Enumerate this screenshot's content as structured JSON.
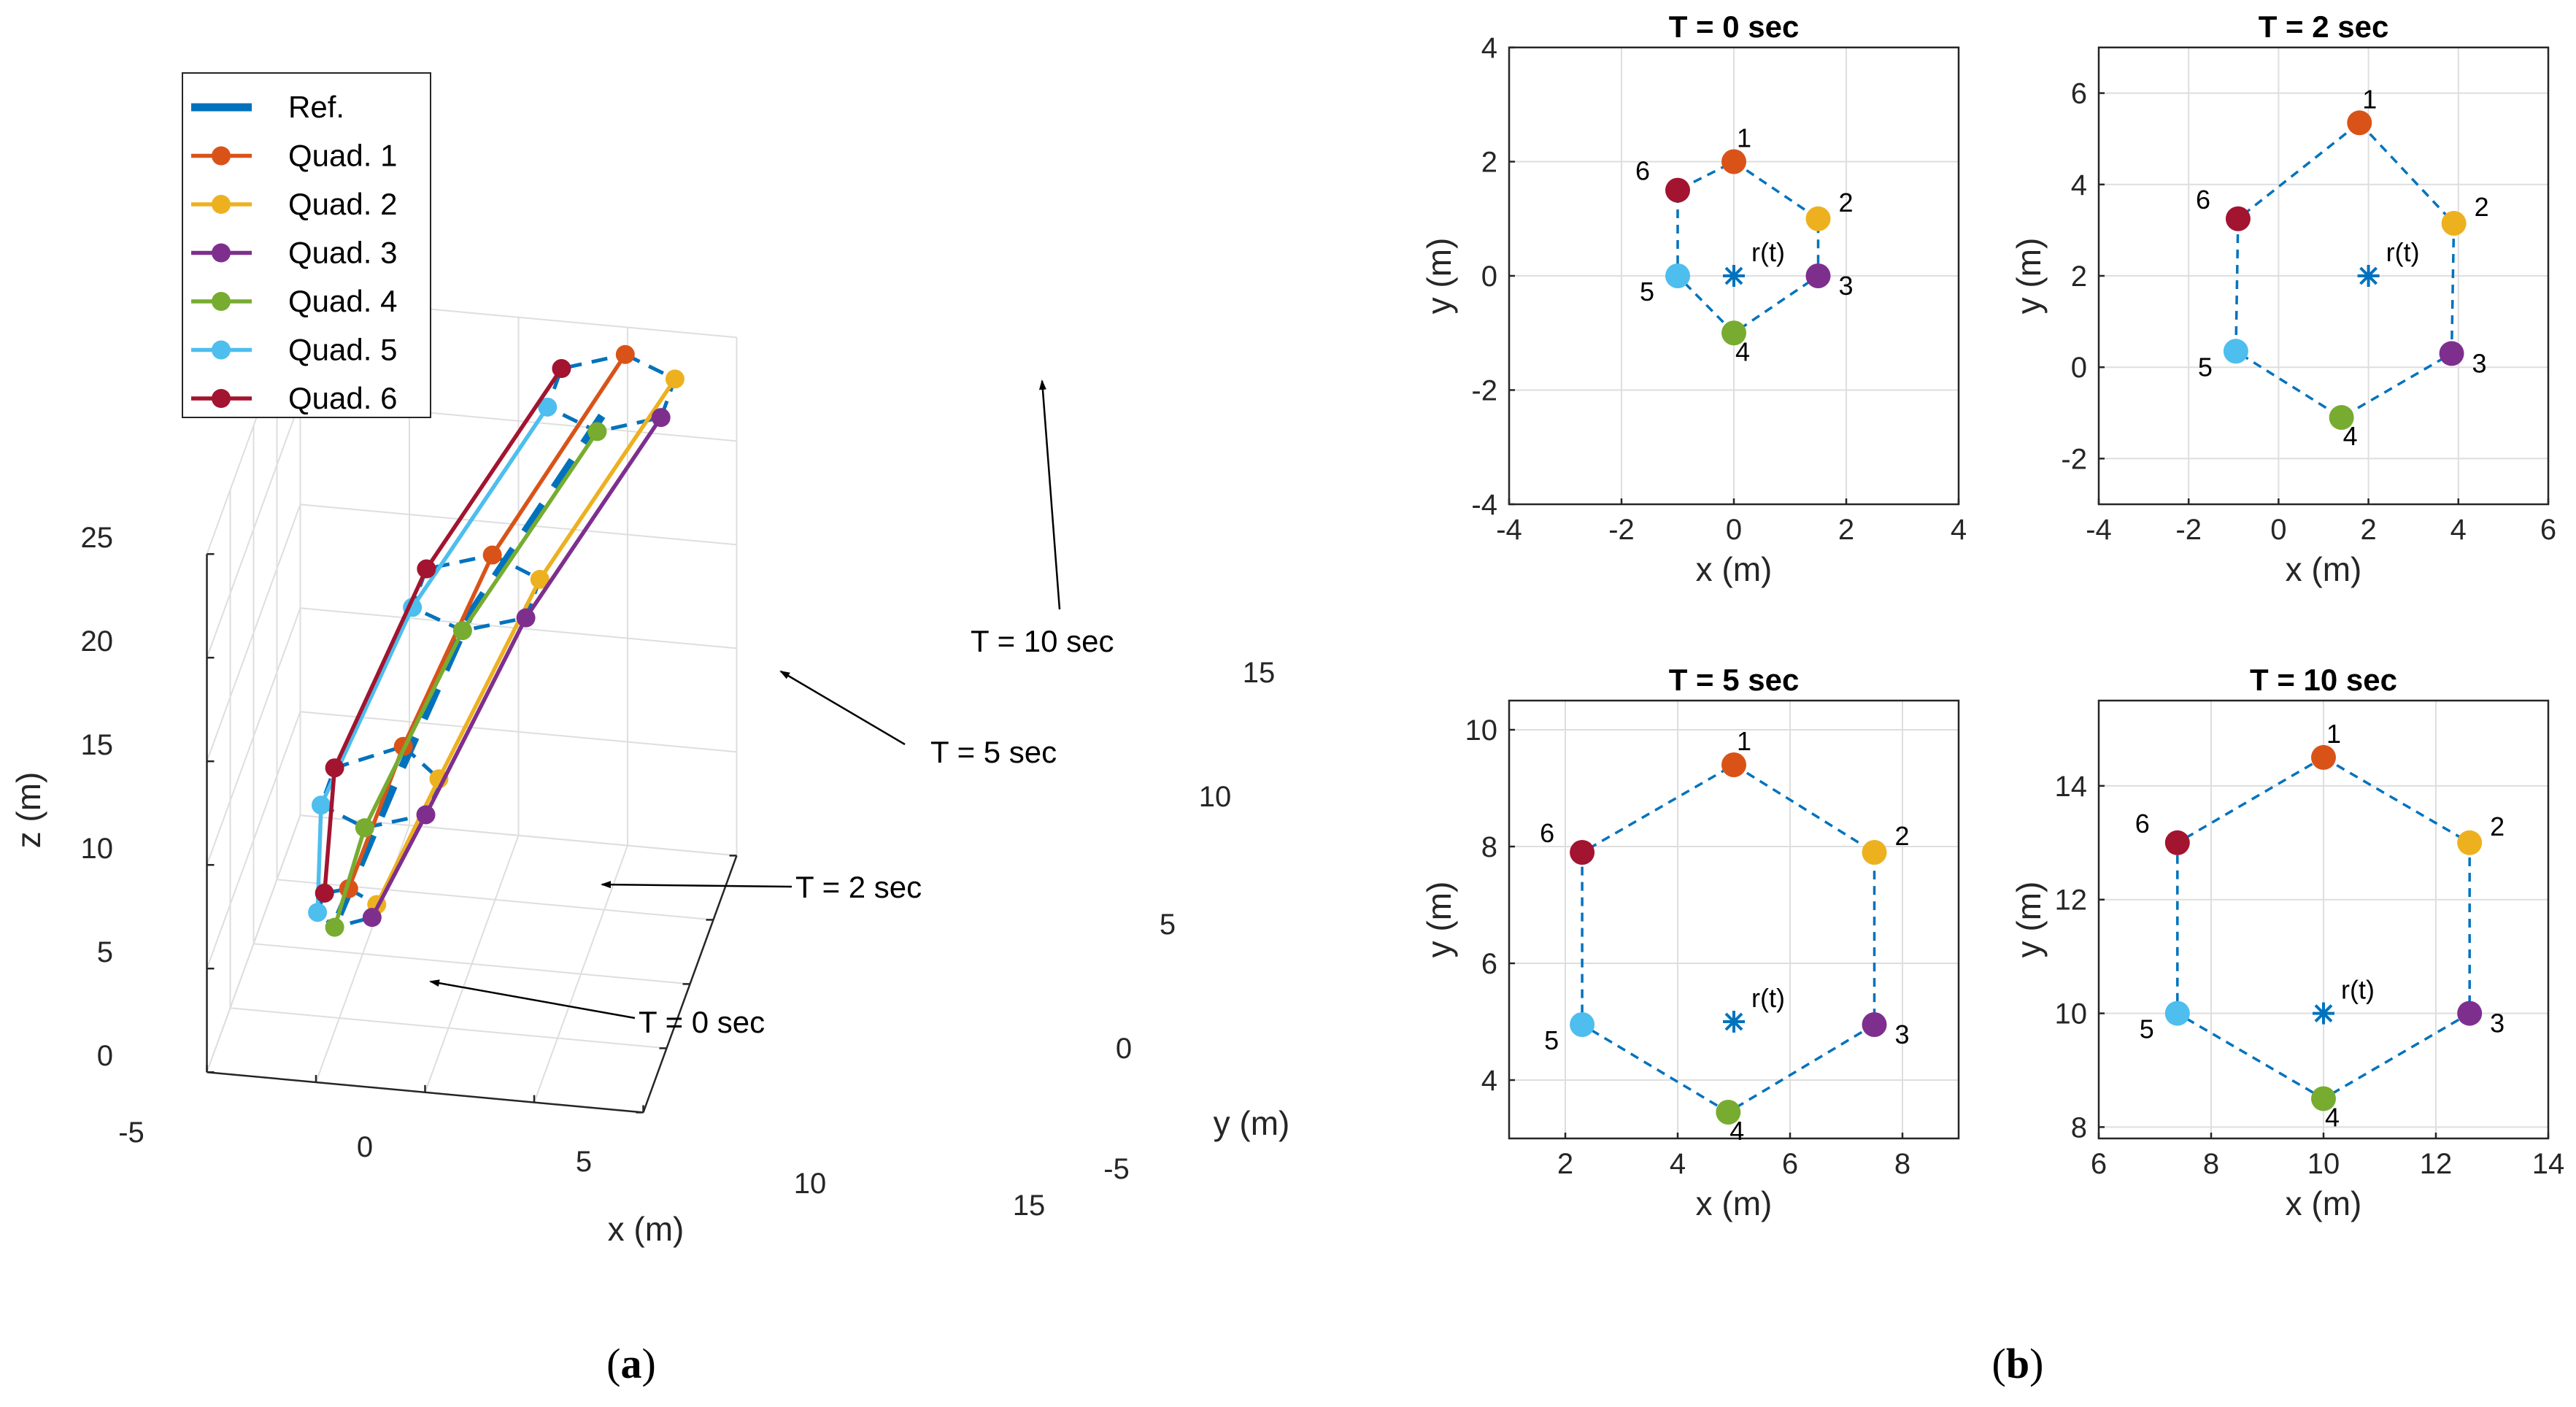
{
  "colors": {
    "ref": "#0072BD",
    "q1": "#D95319",
    "q2": "#EDB120",
    "q3": "#7E2F8E",
    "q4": "#77AC30",
    "q5": "#4DBEEE",
    "q6": "#A2142F"
  },
  "captions": {
    "a": "(a)",
    "a_letter": "a",
    "b": "(b)",
    "b_letter": "b"
  },
  "chart_data": [
    {
      "type": "line",
      "id": "3d-trajectories",
      "xlabel": "x (m)",
      "ylabel": "y (m)",
      "zlabel": "z (m)",
      "xlim": [
        -5,
        15
      ],
      "ylim": [
        -5,
        15
      ],
      "zlim": [
        0,
        25
      ],
      "x_ticks": [
        "-5",
        "0",
        "5",
        "10",
        "15"
      ],
      "y_ticks": [
        "-5",
        "0",
        "5",
        "10",
        "15"
      ],
      "z_ticks": [
        "0",
        "5",
        "10",
        "15",
        "20",
        "25"
      ],
      "legend": [
        "Ref.",
        "Quad. 1",
        "Quad. 2",
        "Quad. 3",
        "Quad. 4",
        "Quad. 5",
        "Quad. 6"
      ],
      "legend_location": "top-left",
      "annotations": [
        "T = 0 sec",
        "T = 2 sec",
        "T = 5 sec",
        "T = 10 sec"
      ],
      "snapshot_times": [
        0,
        2,
        5,
        10
      ],
      "series": [
        {
          "name": "Ref.",
          "points": [
            [
              0,
              0,
              5
            ],
            [
              2,
              2,
              10
            ],
            [
              5,
              5,
              17
            ],
            [
              10,
              10,
              24
            ]
          ]
        },
        {
          "name": "Quad. 1",
          "points": [
            [
              0,
              2,
              5
            ],
            [
              1.8,
              5.3,
              10
            ],
            [
              5,
              9.4,
              17
            ],
            [
              10,
              14.5,
              24
            ]
          ]
        },
        {
          "name": "Quad. 2",
          "points": [
            [
              1.5,
              1,
              5
            ],
            [
              3.9,
              3.1,
              10
            ],
            [
              7.5,
              7.9,
              17
            ],
            [
              12.6,
              13,
              24
            ]
          ]
        },
        {
          "name": "Quad. 3",
          "points": [
            [
              1.5,
              0,
              5
            ],
            [
              3.9,
              0.3,
              10
            ],
            [
              7.5,
              4.9,
              17
            ],
            [
              12.6,
              10,
              24
            ]
          ]
        },
        {
          "name": "Quad. 4",
          "points": [
            [
              0,
              -1,
              5
            ],
            [
              1.4,
              -1.1,
              10
            ],
            [
              4.9,
              3.5,
              17
            ],
            [
              10,
              8.5,
              24
            ]
          ]
        },
        {
          "name": "Quad. 5",
          "points": [
            [
              -1,
              0,
              5
            ],
            [
              -0.9,
              0.3,
              10
            ],
            [
              2.3,
              4.9,
              17
            ],
            [
              7.4,
              10,
              24
            ]
          ]
        },
        {
          "name": "Quad. 6",
          "points": [
            [
              -1,
              1.5,
              5
            ],
            [
              -0.9,
              3.2,
              10
            ],
            [
              2.3,
              7.9,
              17
            ],
            [
              7.4,
              13,
              24
            ]
          ]
        }
      ]
    },
    {
      "type": "scatter",
      "id": "T0",
      "title": "T = 0 sec",
      "xlabel": "x (m)",
      "ylabel": "y (m)",
      "xlim": [
        -4,
        4
      ],
      "ylim": [
        -4,
        4
      ],
      "x_ticks": [
        "-4",
        "-2",
        "0",
        "2",
        "4"
      ],
      "y_ticks": [
        "-4",
        "-2",
        "0",
        "2",
        "4"
      ],
      "center": {
        "label": "r(t)",
        "x": 0,
        "y": 0
      },
      "quads": [
        {
          "id": "1",
          "x": 0,
          "y": 2
        },
        {
          "id": "2",
          "x": 1.5,
          "y": 1
        },
        {
          "id": "3",
          "x": 1.5,
          "y": 0
        },
        {
          "id": "4",
          "x": 0,
          "y": -1
        },
        {
          "id": "5",
          "x": -1,
          "y": 0
        },
        {
          "id": "6",
          "x": -1,
          "y": 1.5
        }
      ]
    },
    {
      "type": "scatter",
      "id": "T2",
      "title": "T = 2 sec",
      "xlabel": "x (m)",
      "ylabel": "y (m)",
      "xlim": [
        -4,
        6
      ],
      "ylim": [
        -3,
        7
      ],
      "x_ticks": [
        "-4",
        "-2",
        "0",
        "2",
        "4",
        "6"
      ],
      "y_ticks": [
        "-2",
        "0",
        "2",
        "4",
        "6"
      ],
      "center": {
        "label": "r(t)",
        "x": 2,
        "y": 2
      },
      "quads": [
        {
          "id": "1",
          "x": 1.8,
          "y": 5.35
        },
        {
          "id": "2",
          "x": 3.9,
          "y": 3.15
        },
        {
          "id": "3",
          "x": 3.85,
          "y": 0.3
        },
        {
          "id": "4",
          "x": 1.4,
          "y": -1.1
        },
        {
          "id": "5",
          "x": -0.95,
          "y": 0.35
        },
        {
          "id": "6",
          "x": -0.9,
          "y": 3.25
        }
      ]
    },
    {
      "type": "scatter",
      "id": "T5",
      "title": "T = 5 sec",
      "xlabel": "x (m)",
      "ylabel": "y (m)",
      "xlim": [
        1,
        9
      ],
      "ylim": [
        3,
        10.5
      ],
      "x_ticks": [
        "2",
        "4",
        "6",
        "8"
      ],
      "y_ticks": [
        "4",
        "6",
        "8",
        "10"
      ],
      "center": {
        "label": "r(t)",
        "x": 5,
        "y": 5
      },
      "quads": [
        {
          "id": "1",
          "x": 5,
          "y": 9.4
        },
        {
          "id": "2",
          "x": 7.5,
          "y": 7.9
        },
        {
          "id": "3",
          "x": 7.5,
          "y": 4.95
        },
        {
          "id": "4",
          "x": 4.9,
          "y": 3.45
        },
        {
          "id": "5",
          "x": 2.3,
          "y": 4.95
        },
        {
          "id": "6",
          "x": 2.3,
          "y": 7.9
        }
      ]
    },
    {
      "type": "scatter",
      "id": "T10",
      "title": "T = 10 sec",
      "xlabel": "x (m)",
      "ylabel": "y (m)",
      "xlim": [
        6,
        14
      ],
      "ylim": [
        7.8,
        15.5
      ],
      "x_ticks": [
        "6",
        "8",
        "10",
        "12",
        "14"
      ],
      "y_ticks": [
        "8",
        "10",
        "12",
        "14"
      ],
      "center": {
        "label": "r(t)",
        "x": 10,
        "y": 10
      },
      "quads": [
        {
          "id": "1",
          "x": 10,
          "y": 14.5
        },
        {
          "id": "2",
          "x": 12.6,
          "y": 13
        },
        {
          "id": "3",
          "x": 12.6,
          "y": 10
        },
        {
          "id": "4",
          "x": 10,
          "y": 8.5
        },
        {
          "id": "5",
          "x": 7.4,
          "y": 10
        },
        {
          "id": "6",
          "x": 7.4,
          "y": 13
        }
      ]
    }
  ]
}
